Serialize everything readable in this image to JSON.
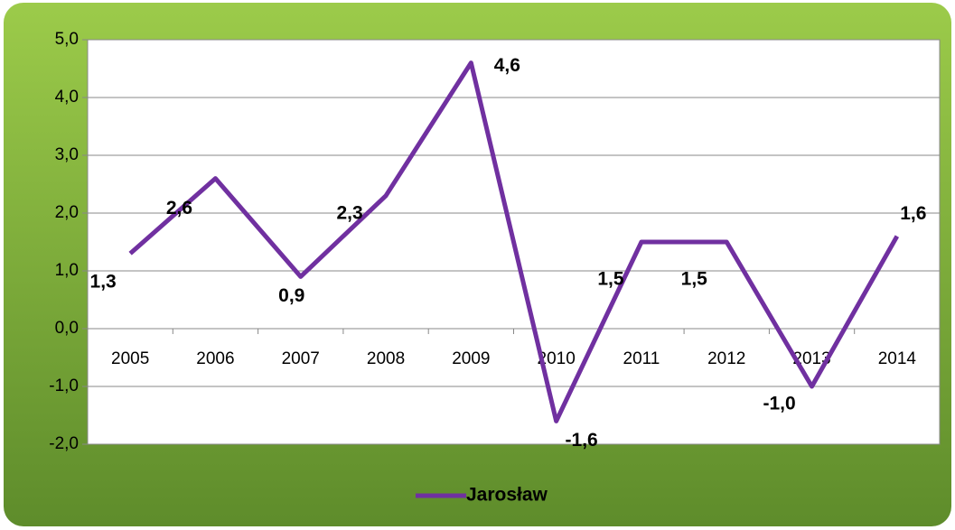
{
  "chart_data": {
    "type": "line",
    "categories": [
      "2005",
      "2006",
      "2007",
      "2008",
      "2009",
      "2010",
      "2011",
      "2012",
      "2013",
      "2014"
    ],
    "series": [
      {
        "name": "Jarosław",
        "color": "#7030a0",
        "values": [
          1.3,
          2.6,
          0.9,
          2.3,
          4.6,
          -1.6,
          1.5,
          1.5,
          -1.0,
          1.6
        ],
        "value_labels": [
          "1,3",
          "2,6",
          "0,9",
          "2,3",
          "4,6",
          "-1,6",
          "1,5",
          "1,5",
          "-1,0",
          "1,6"
        ]
      }
    ],
    "ylim": [
      -2,
      5
    ],
    "yticks": [
      {
        "value": -2,
        "label": "-2,0"
      },
      {
        "value": -1,
        "label": "-1,0"
      },
      {
        "value": 0,
        "label": "0,0"
      },
      {
        "value": 1,
        "label": "1,0"
      },
      {
        "value": 2,
        "label": "2,0"
      },
      {
        "value": 3,
        "label": "3,0"
      },
      {
        "value": 4,
        "label": "4,0"
      },
      {
        "value": 5,
        "label": "5,0"
      }
    ],
    "legend": "bottom"
  }
}
